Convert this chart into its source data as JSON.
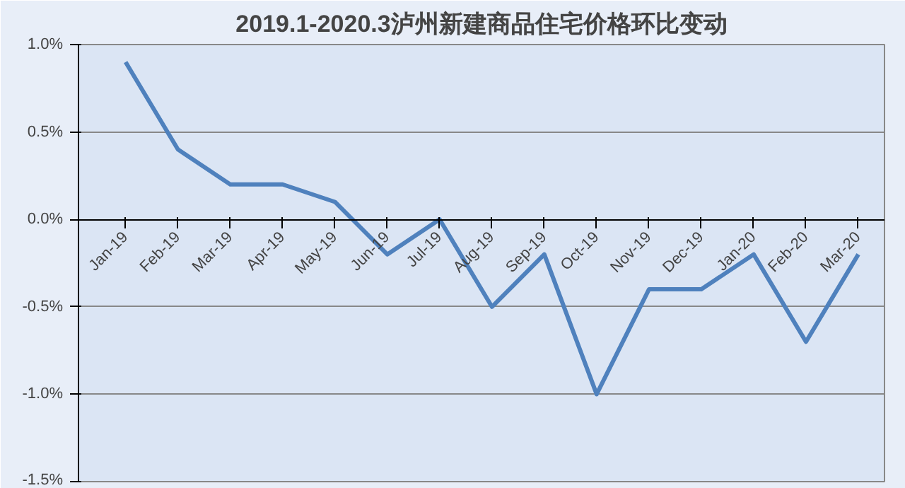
{
  "chart_data": {
    "type": "line",
    "title": "2019.1-2020.3泸州新建商品住宅价格环比变动",
    "categories": [
      "Jan-19",
      "Feb-19",
      "Mar-19",
      "Apr-19",
      "May-19",
      "Jun-19",
      "Jul-19",
      "Aug-19",
      "Sep-19",
      "Oct-19",
      "Nov-19",
      "Dec-19",
      "Jan-20",
      "Feb-20",
      "Mar-20"
    ],
    "series": [
      {
        "color": "#4f81bd",
        "values": [
          0.9,
          0.4,
          0.2,
          0.2,
          0.1,
          -0.2,
          0.0,
          -0.5,
          -0.2,
          -1.0,
          -0.4,
          -0.4,
          -0.2,
          -0.7,
          -0.2
        ]
      }
    ],
    "ylim": [
      -1.5,
      1.0
    ],
    "yticks": [
      {
        "value": -1.5,
        "label": "-1.5%"
      },
      {
        "value": -1.0,
        "label": "-1.0%"
      },
      {
        "value": -0.5,
        "label": "-0.5%"
      },
      {
        "value": 0.0,
        "label": "0.0%"
      },
      {
        "value": 0.5,
        "label": "0.5%"
      },
      {
        "value": 1.0,
        "label": "1.0%"
      }
    ],
    "grid": "y",
    "marker": "none",
    "line_style": "solid"
  }
}
